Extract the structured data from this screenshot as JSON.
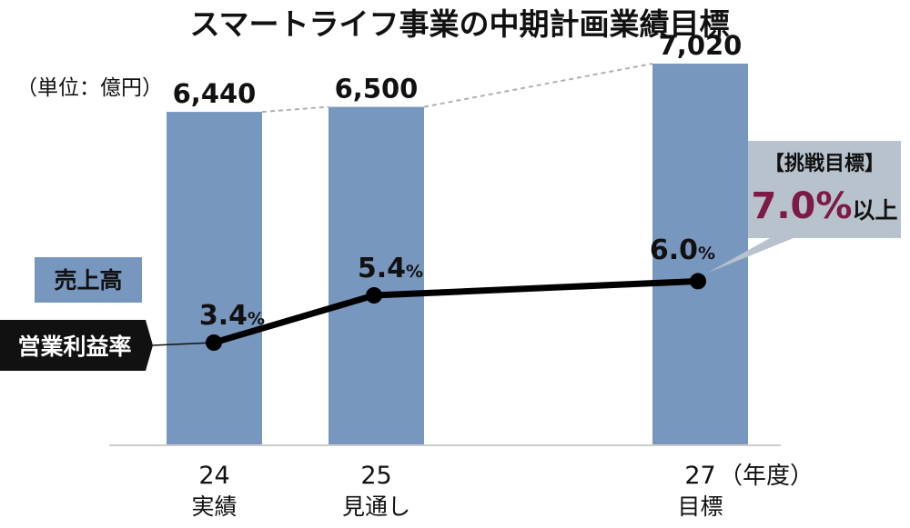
{
  "chart_data": {
    "type": "bar",
    "title": "スマートライフ事業の中期計画業績目標",
    "unit_label": "（単位：億円）",
    "x_unit_label": "（年度）",
    "categories": [
      {
        "year": "24",
        "label": "実績"
      },
      {
        "year": "25",
        "label": "見通し"
      },
      {
        "year": "27",
        "label": "目標"
      }
    ],
    "series": [
      {
        "name": "売上高",
        "type": "bar",
        "values": [
          6440,
          6500,
          7020
        ],
        "value_labels": [
          "6,440",
          "6,500",
          "7,020"
        ],
        "color": "#7897be"
      },
      {
        "name": "営業利益率",
        "type": "line",
        "values": [
          3.4,
          5.4,
          6.0
        ],
        "value_labels": [
          "3.4",
          "5.4",
          "6.0"
        ],
        "unit": "%",
        "color": "#000000"
      }
    ],
    "callout": {
      "heading": "【挑戦目標】",
      "value": "7.0%",
      "suffix": "以上",
      "value_color": "#7d1a45",
      "background": "#b7c2cd"
    },
    "bar_label_color": "#6a8ab8",
    "line_label_background": "#111111"
  }
}
